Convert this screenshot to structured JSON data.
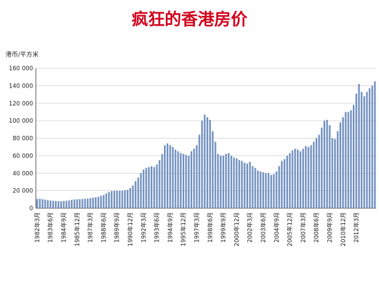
{
  "title": "疯狂的香港房价",
  "chart_data": {
    "type": "bar",
    "title": "疯狂的香港房价",
    "ylabel": "港币/平方米",
    "ylim": [
      0,
      160000
    ],
    "ytick_labels": [
      "0",
      "20 000",
      "40 000",
      "60 000",
      "80 000",
      "100 000",
      "120 000",
      "140 000",
      "160 000"
    ],
    "xtick_labels": [
      "1982年3月",
      "1983年6月",
      "1984年9月",
      "1985年12月",
      "1987年3月",
      "1988年6月",
      "1989年9月",
      "1990年12月",
      "1992年3月",
      "1993年6月",
      "1994年9月",
      "1995年12月",
      "1997年3月",
      "1998年6月",
      "1999年9月",
      "2000年12月",
      "2002年3月",
      "2003年6月",
      "2004年9月",
      "2005年12月",
      "2007年3月",
      "2008年6月",
      "2009年9月",
      "2010年12月",
      "2012年3月"
    ],
    "bar_color": "#6f8fbf",
    "series": [
      {
        "values": [
          10500,
          10800,
          10200,
          9800,
          9200,
          8800,
          8500,
          8200,
          8000,
          8000,
          8200,
          8500,
          8800,
          9500,
          10000,
          10200,
          10300,
          10500,
          10800,
          11000,
          11500,
          12000,
          12500,
          13000,
          14000,
          15000,
          17000,
          18500,
          19500,
          20000,
          20000,
          19800,
          20000,
          20500,
          21000,
          23000,
          26000,
          31000,
          35000,
          40000,
          44000,
          46000,
          47000,
          48000,
          47000,
          50000,
          55000,
          62000,
          72000,
          74000,
          72000,
          70000,
          67000,
          65000,
          63000,
          62000,
          61000,
          60000,
          65000,
          68000,
          72000,
          84000,
          100000,
          107000,
          104000,
          101000,
          88000,
          76000,
          62000,
          60000,
          60000,
          62000,
          63000,
          60000,
          58000,
          57000,
          55000,
          54000,
          52000,
          51000,
          53000,
          48000,
          46000,
          43000,
          42000,
          41000,
          40000,
          40000,
          38000,
          39000,
          42000,
          48000,
          54000,
          56000,
          60000,
          63000,
          66000,
          68000,
          67000,
          65000,
          68000,
          71000,
          70000,
          72000,
          76000,
          80000,
          84000,
          92000,
          100000,
          101000,
          95000,
          80000,
          79000,
          88000,
          98000,
          104000,
          110000,
          110000,
          112000,
          118000,
          131000,
          142000,
          133000,
          128000,
          133000,
          137000,
          140000,
          145000
        ]
      }
    ]
  }
}
